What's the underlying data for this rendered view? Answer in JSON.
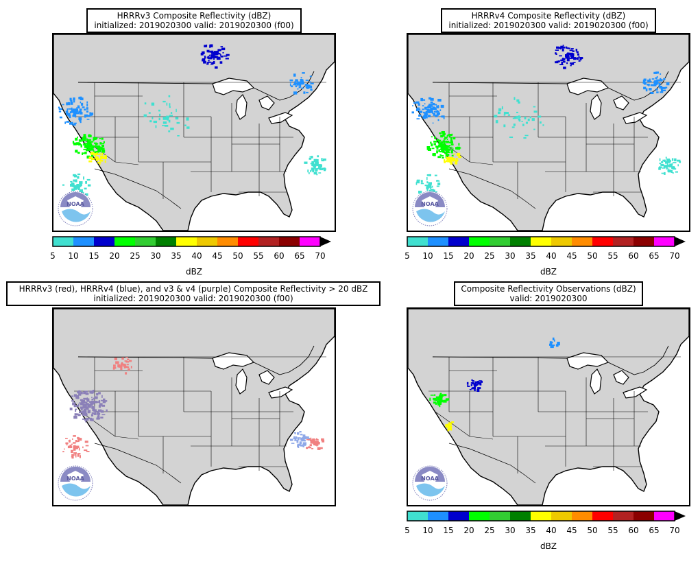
{
  "panels": [
    {
      "title_line1": "HRRRv3 Composite Reflectivity (dBZ)",
      "title_line2": "initialized: 2019020300 valid: 2019020300 (f00)",
      "logo": "noaa-logo",
      "colorbar": true
    },
    {
      "title_line1": "HRRRv4 Composite Reflectivity (dBZ)",
      "title_line2": "initialized: 2019020300 valid: 2019020300 (f00)",
      "logo": "noaa-logo",
      "colorbar": true
    },
    {
      "title_line1": "HRRRv3 (red), HRRRv4 (blue), and v3 & v4 (purple) Composite Reflectivity > 20 dBZ",
      "title_line2": "initialized: 2019020300 valid: 2019020300 (f00)",
      "logo": "noaa-logo",
      "colorbar": false
    },
    {
      "title_line1": "Composite Reflectivity Observations (dBZ)",
      "title_line2": "valid: 2019020300",
      "logo": "noaa-logo",
      "colorbar": true
    }
  ],
  "colorbar": {
    "label": "dBZ",
    "ticks": [
      "5",
      "10",
      "15",
      "20",
      "25",
      "30",
      "35",
      "40",
      "45",
      "50",
      "55",
      "60",
      "65",
      "70"
    ],
    "colors": [
      "#40e0d0",
      "#1e90ff",
      "#0000cd",
      "#00ff00",
      "#32cd32",
      "#008000",
      "#ffff00",
      "#eec900",
      "#ff8c00",
      "#ff0000",
      "#b22222",
      "#8b0000",
      "#ff00ff"
    ]
  },
  "colors": {
    "land": "#d3d3d3",
    "water": "#ffffff",
    "v3_only": "#f08080",
    "v4_only": "#8fa8e8",
    "both": "#8b80b8"
  }
}
